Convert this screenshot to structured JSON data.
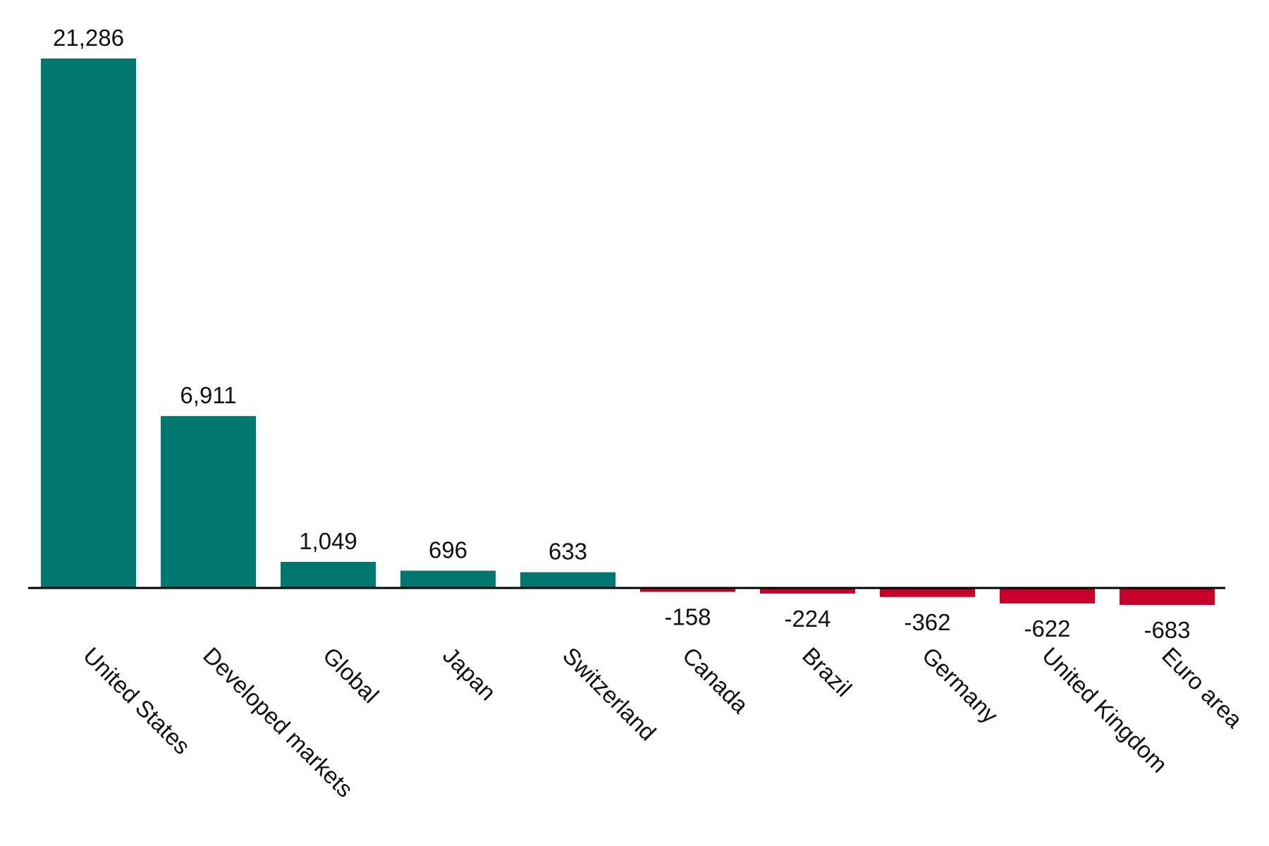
{
  "chart_data": {
    "type": "bar",
    "categories": [
      "United States",
      "Developed markets",
      "Global",
      "Japan",
      "Switzerland",
      "Canada",
      "Brazil",
      "Germany",
      "United Kingdom",
      "Euro area"
    ],
    "values": [
      21286,
      6911,
      1049,
      696,
      633,
      -158,
      -224,
      -362,
      -622,
      -683
    ],
    "value_labels": [
      "21,286",
      "6,911",
      "1,049",
      "696",
      "633",
      "-158",
      "-224",
      "-362",
      "-622",
      "-683"
    ],
    "positive_color": "#00786f",
    "negative_color": "#c8002a"
  }
}
